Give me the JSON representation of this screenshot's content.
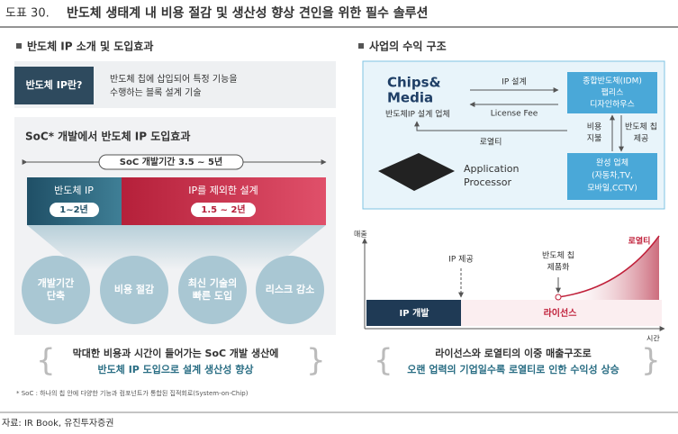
{
  "header": {
    "label": "도표 30.",
    "title": "반도체 생태계 내 비용 절감 및 생산성 향상 견인을 위한 필수 솔루션"
  },
  "left": {
    "title": "반도체 IP 소개 및 도입효과",
    "definition": {
      "term": "반도체 IP란?",
      "description": [
        "반도체 칩에 삽입되어 특정 기능을",
        "수행하는 블록 설계 기술"
      ]
    },
    "effects": {
      "title": "SoC* 개발에서 반도체 IP 도입효과",
      "total_period": "SoC 개발기간 3.5 ~ 5년",
      "ip": {
        "label": "반도체 IP",
        "period": "1~2년"
      },
      "other": {
        "label": "IP를 제외한 설계",
        "period": "1.5 ~ 2년"
      },
      "benefits": [
        [
          "개발기간",
          "단축"
        ],
        [
          "비용 절감"
        ],
        [
          "최신 기술의",
          "빠른 도입"
        ],
        [
          "리스크 감소"
        ]
      ]
    },
    "summary": [
      "막대한 비용과 시간이 들어가는 SoC 개발 생산에",
      "반도체 IP 도입으로 설계 생산성 향상"
    ],
    "footnote": "* SoC : 하나의 칩 안에 다양한 기능과 컴포넌트가 통합된 집적회로(System-on-Chip)"
  },
  "right": {
    "title": "사업의 수익 구조",
    "flow": {
      "logo": [
        "Chips&",
        "Media"
      ],
      "company": "반도체IP 설계 업체",
      "ip_design": "IP 설계",
      "license_fee": "License Fee",
      "idm": [
        "종합반도체(IDM)",
        "팹리스",
        "디자인하우스"
      ],
      "payment": [
        "비용",
        "지불"
      ],
      "chip_supply": [
        "반도체 칩",
        "제공"
      ],
      "royalty": "로열티",
      "maker": [
        "완성 업체",
        "(자동차,TV,",
        "모바일,CCTV)"
      ],
      "processor": [
        "Application",
        "Processor"
      ]
    },
    "revenue": {
      "y_label": "매출",
      "x_label": "시간",
      "ip_supply": "IP 제공",
      "commercialization": [
        "반도체 칩",
        "제품화"
      ],
      "royalty": "로열티",
      "ip_dev": "IP 개발",
      "license": "라이선스"
    },
    "summary": [
      "라이선스와 로열티의 이중 매출구조로",
      "오랜 업력의 기업일수록 로열티로 인한 수익성 상승"
    ]
  },
  "source": "자료: IR Book, 유진투자증권"
}
